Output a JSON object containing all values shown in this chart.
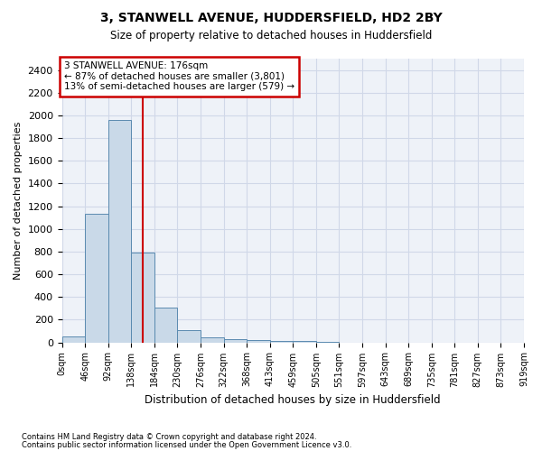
{
  "title": "3, STANWELL AVENUE, HUDDERSFIELD, HD2 2BY",
  "subtitle": "Size of property relative to detached houses in Huddersfield",
  "xlabel": "Distribution of detached houses by size in Huddersfield",
  "ylabel": "Number of detached properties",
  "footnote1": "Contains HM Land Registry data © Crown copyright and database right 2024.",
  "footnote2": "Contains public sector information licensed under the Open Government Licence v3.0.",
  "bar_color": "#c9d9e8",
  "bar_edge_color": "#5a8ab0",
  "grid_color": "#d0d8e8",
  "background_color": "#eef2f8",
  "vline_color": "#cc0000",
  "vline_x": 3.0,
  "annotation_text": "3 STANWELL AVENUE: 176sqm\n← 87% of detached houses are smaller (3,801)\n13% of semi-detached houses are larger (579) →",
  "annotation_box_color": "#ffffff",
  "annotation_box_edge": "#cc0000",
  "bin_labels": [
    "0sqm",
    "46sqm",
    "92sqm",
    "138sqm",
    "184sqm",
    "230sqm",
    "276sqm",
    "322sqm",
    "368sqm",
    "413sqm",
    "459sqm",
    "505sqm",
    "551sqm",
    "597sqm",
    "643sqm",
    "689sqm",
    "735sqm",
    "781sqm",
    "827sqm",
    "873sqm",
    "919sqm"
  ],
  "bar_heights": [
    50,
    1130,
    1960,
    790,
    305,
    105,
    45,
    30,
    22,
    15,
    10,
    2,
    0,
    0,
    0,
    0,
    0,
    0,
    0,
    0
  ],
  "ylim": [
    0,
    2500
  ],
  "yticks": [
    0,
    200,
    400,
    600,
    800,
    1000,
    1200,
    1400,
    1600,
    1800,
    2000,
    2200,
    2400
  ]
}
